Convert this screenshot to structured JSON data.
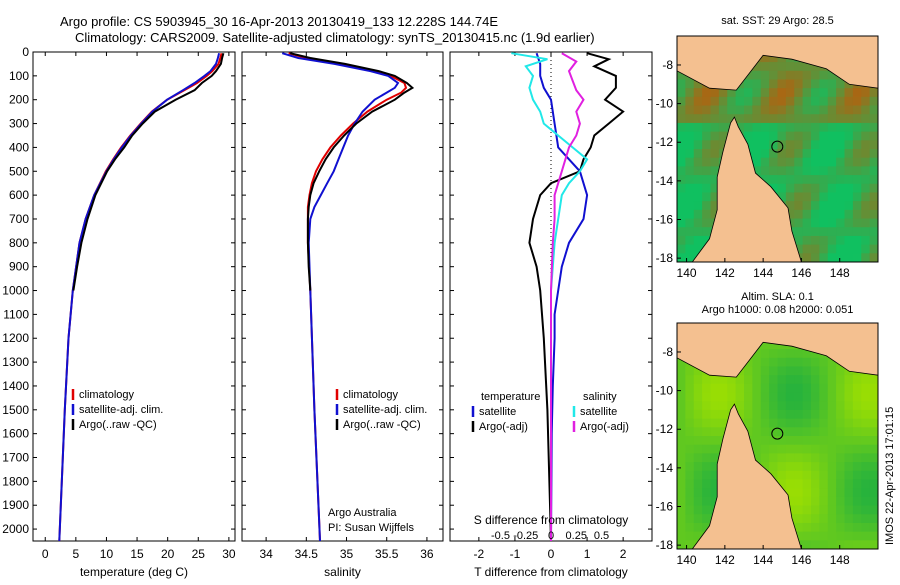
{
  "header": {
    "line1": "Argo profile: CS 5903945_30 16-Apr-2013 20130419_133 12.228S 144.74E",
    "line2": "Climatology: CARS2009. Satellite-adjusted climatology: synTS_20130415.nc (1.9d earlier)"
  },
  "colors": {
    "red": "#e00000",
    "blue": "#1010d0",
    "black": "#000000",
    "cyan": "#20e8e8",
    "magenta": "#e020e0",
    "land": "#f4c090",
    "sst_low": "#10c060",
    "sst_high": "#d05000",
    "sla_low": "#a0e000",
    "sla_high": "#20b040"
  },
  "chart_data": [
    {
      "type": "line",
      "id": "temperature",
      "xlabel": "temperature (deg C)",
      "xlim": [
        -2,
        31
      ],
      "ylim": [
        0,
        2050
      ],
      "xticks": [
        0,
        5,
        10,
        15,
        20,
        25,
        30
      ],
      "yticks": [
        0,
        100,
        200,
        300,
        400,
        500,
        600,
        700,
        800,
        900,
        1000,
        1100,
        1200,
        1300,
        1400,
        1500,
        1600,
        1700,
        1800,
        1900,
        2000
      ],
      "legend": [
        "climatology",
        "satellite-adj. clim.",
        "Argo(..raw -QC)"
      ],
      "series": [
        {
          "name": "climatology",
          "color": "red",
          "depth": [
            5,
            25,
            50,
            80,
            100,
            130,
            160,
            200,
            250,
            300,
            350,
            400,
            450,
            500,
            600,
            700,
            800,
            1000,
            1200,
            1500,
            1800,
            2050
          ],
          "values": [
            28.8,
            28.6,
            28.3,
            27.3,
            26.4,
            24.8,
            22.7,
            19.9,
            17.4,
            15.6,
            13.9,
            12.4,
            11.1,
            9.9,
            8.0,
            6.6,
            5.6,
            4.5,
            3.8,
            3.2,
            2.7,
            2.3
          ]
        },
        {
          "name": "satellite-adj. clim.",
          "color": "blue",
          "depth": [
            5,
            25,
            50,
            80,
            100,
            130,
            160,
            200,
            250,
            300,
            350,
            400,
            450,
            500,
            600,
            700,
            800,
            1000,
            1200,
            1500,
            1800,
            2050
          ],
          "values": [
            28.4,
            28.2,
            27.9,
            27.0,
            26.0,
            24.4,
            22.5,
            19.9,
            17.5,
            15.7,
            14.0,
            12.5,
            11.2,
            10.0,
            8.0,
            6.6,
            5.6,
            4.5,
            3.8,
            3.2,
            2.7,
            2.3
          ]
        },
        {
          "name": "Argo(..raw -QC)",
          "color": "black",
          "depth": [
            5,
            25,
            50,
            80,
            100,
            130,
            160,
            200,
            250,
            300,
            350,
            400,
            450,
            500,
            600,
            700,
            800,
            900,
            1000
          ],
          "values": [
            29.1,
            28.9,
            28.7,
            27.9,
            27.2,
            25.6,
            24.4,
            21.3,
            17.9,
            15.9,
            14.2,
            12.9,
            11.4,
            10.1,
            8.2,
            6.9,
            5.9,
            5.2,
            4.6
          ]
        }
      ]
    },
    {
      "type": "line",
      "id": "salinity",
      "xlabel": "salinity",
      "xlim": [
        33.7,
        36.2
      ],
      "ylim": [
        0,
        2050
      ],
      "xticks": [
        34,
        34.5,
        35,
        35.5,
        36
      ],
      "legend": [
        "climatology",
        "satellite-adj. clim.",
        "Argo(..raw -QC)"
      ],
      "annotation": [
        "Argo Australia",
        "PI: Susan Wijffels"
      ],
      "series": [
        {
          "name": "climatology",
          "color": "red",
          "depth": [
            5,
            25,
            50,
            80,
            100,
            130,
            150,
            170,
            200,
            250,
            300,
            350,
            400,
            450,
            500,
            550,
            600,
            650,
            700,
            800,
            1000,
            1500,
            2050
          ],
          "values": [
            34.28,
            34.5,
            34.95,
            35.35,
            35.55,
            35.72,
            35.74,
            35.68,
            35.5,
            35.26,
            35.08,
            34.93,
            34.8,
            34.7,
            34.62,
            34.57,
            34.54,
            34.52,
            34.52,
            34.52,
            34.55,
            34.6,
            34.67
          ]
        },
        {
          "name": "satellite-adj. clim.",
          "color": "blue",
          "depth": [
            5,
            25,
            50,
            80,
            100,
            130,
            150,
            170,
            200,
            250,
            300,
            350,
            400,
            450,
            500,
            550,
            600,
            650,
            700,
            800,
            1000,
            1500,
            2050
          ],
          "values": [
            34.2,
            34.4,
            34.85,
            35.3,
            35.52,
            35.64,
            35.6,
            35.5,
            35.35,
            35.2,
            35.1,
            35.02,
            34.96,
            34.9,
            34.84,
            34.76,
            34.68,
            34.6,
            34.55,
            34.53,
            34.55,
            34.6,
            34.67
          ]
        },
        {
          "name": "Argo(..raw -QC)",
          "color": "black",
          "depth": [
            5,
            25,
            50,
            80,
            100,
            130,
            150,
            170,
            200,
            250,
            300,
            350,
            400,
            450,
            500,
            550,
            600,
            650,
            700,
            800,
            900,
            1000
          ],
          "values": [
            34.3,
            34.55,
            34.98,
            35.4,
            35.6,
            35.75,
            35.82,
            35.72,
            35.6,
            35.32,
            35.12,
            34.97,
            34.84,
            34.74,
            34.66,
            34.59,
            34.55,
            34.53,
            34.52,
            34.52,
            34.53,
            34.55
          ]
        }
      ]
    },
    {
      "type": "line",
      "id": "differences",
      "xlabel": "T difference from climatology",
      "xlabel2": "S difference from climatology",
      "xlim": [
        -2.8,
        2.8
      ],
      "ylim": [
        0,
        2050
      ],
      "xticks": [
        -2,
        -1,
        0,
        1,
        2
      ],
      "sticks": [
        -0.5,
        -0.25,
        0,
        0.25,
        0.5
      ],
      "sticklabels": [
        "-0.5",
        "-0.25",
        "0",
        "0.25",
        "0.5"
      ],
      "legend_temperature": {
        "title": "temperature",
        "items": [
          "satellite",
          "Argo(-adj)"
        ]
      },
      "legend_salinity": {
        "title": "salinity",
        "items": [
          "satellite",
          "Argo(-adj)"
        ]
      },
      "series": [
        {
          "name": "T satellite",
          "color": "blue",
          "depth": [
            5,
            50,
            100,
            150,
            200,
            300,
            400,
            500,
            600,
            700,
            800,
            900,
            1000,
            1100,
            1200,
            1400,
            1600,
            2050
          ],
          "values": [
            -0.4,
            -0.3,
            -0.3,
            -0.2,
            0.0,
            0.1,
            0.2,
            0.8,
            1.0,
            0.9,
            0.5,
            0.3,
            0.2,
            0.1,
            0.1,
            0.05,
            0.02,
            0.0
          ]
        },
        {
          "name": "T Argo(-adj)",
          "color": "black",
          "depth": [
            5,
            30,
            60,
            100,
            150,
            200,
            250,
            300,
            350,
            400,
            450,
            500,
            550,
            600,
            650,
            700,
            800,
            900,
            1000,
            1200,
            1500,
            2050
          ],
          "values": [
            1.0,
            1.6,
            1.2,
            1.8,
            1.8,
            1.5,
            2.0,
            1.6,
            1.2,
            1.1,
            0.9,
            0.8,
            0.0,
            -0.3,
            -0.4,
            -0.5,
            -0.6,
            -0.4,
            -0.3,
            -0.2,
            -0.1,
            0.0
          ]
        },
        {
          "name": "S satellite",
          "color": "cyan",
          "depth": [
            5,
            30,
            60,
            100,
            150,
            200,
            250,
            300,
            350,
            400,
            450,
            500,
            550,
            600,
            700,
            800,
            1000,
            1500,
            2050
          ],
          "values": [
            -1.1,
            -0.1,
            -0.7,
            -0.5,
            -0.6,
            -0.5,
            -0.3,
            -0.2,
            0.2,
            0.6,
            1.0,
            0.8,
            0.5,
            0.3,
            0.2,
            0.1,
            0.0,
            0.0,
            0.0
          ]
        },
        {
          "name": "S Argo(-adj)",
          "color": "magenta",
          "depth": [
            5,
            40,
            80,
            120,
            160,
            200,
            250,
            300,
            350,
            400,
            450,
            500,
            600,
            700,
            800,
            1000,
            1500,
            2050
          ],
          "values": [
            0.3,
            0.7,
            0.5,
            0.6,
            0.7,
            0.9,
            0.7,
            0.8,
            0.7,
            0.5,
            0.4,
            0.3,
            0.1,
            0.1,
            0.05,
            0.0,
            0.0,
            0.0
          ]
        }
      ]
    },
    {
      "type": "heatmap",
      "id": "sst-map",
      "title": "sat. SST: 29 Argo: 28.5",
      "xlim": [
        139.5,
        150
      ],
      "ylim": [
        -18.2,
        -6.5
      ],
      "xticks": [
        140,
        142,
        144,
        146,
        148
      ],
      "yticks": [
        -8,
        -10,
        -12,
        -14,
        -16,
        -18
      ],
      "marker": {
        "lon": 144.74,
        "lat": -12.228
      },
      "scale": [
        "sst_low",
        "sst_high"
      ]
    },
    {
      "type": "heatmap",
      "id": "sla-map",
      "title": "Altim. SLA: 0.1",
      "subtitle": "Argo h1000: 0.08 h2000: 0.051",
      "xlim": [
        139.5,
        150
      ],
      "ylim": [
        -18.2,
        -6.5
      ],
      "xticks": [
        140,
        142,
        144,
        146,
        148
      ],
      "yticks": [
        -8,
        -10,
        -12,
        -14,
        -16,
        -18
      ],
      "marker": {
        "lon": 144.74,
        "lat": -12.228
      },
      "scale": [
        "sla_low",
        "sla_high"
      ]
    }
  ],
  "sidebar_stamp": "IMOS 22-Apr-2013 17:01:15"
}
